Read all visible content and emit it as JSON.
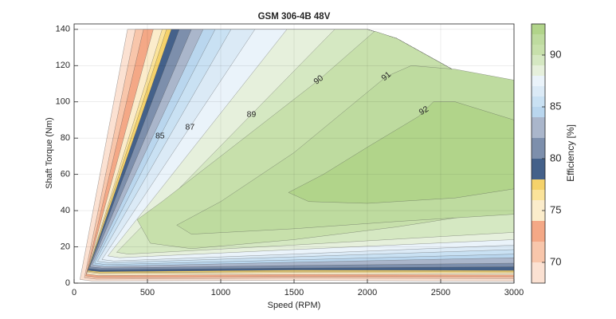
{
  "chart_data": {
    "type": "contour",
    "title": "GSM 306-4B 48V",
    "x_label": "Speed (RPM)",
    "y_label": "Shaft Torque (Nm)",
    "xlim": [
      0,
      3000
    ],
    "ylim": [
      0,
      143
    ],
    "xticks": [
      0,
      500,
      1000,
      1500,
      2000,
      2500,
      3000
    ],
    "yticks": [
      0,
      20,
      40,
      60,
      80,
      100,
      120,
      140
    ],
    "grid": true,
    "colorbar": {
      "label": "Efficiency [%]",
      "clim": [
        68,
        93
      ],
      "ticks": [
        70,
        75,
        80,
        85,
        90
      ]
    },
    "series": [
      {
        "level": 68,
        "color": "#fbe1d2",
        "x": [
          40,
          364,
          2000,
          2200,
          2400,
          2600,
          2800,
          3000,
          3000,
          1500,
          120
        ],
        "y": [
          2,
          140,
          140,
          135,
          126,
          117,
          108,
          100,
          1,
          1.5,
          1.2
        ]
      },
      {
        "level": 70,
        "color": "#f8c6ab",
        "x": [
          70,
          418,
          2000,
          2200,
          2400,
          2600,
          2800,
          3000,
          3000,
          1500,
          150
        ],
        "y": [
          3,
          140,
          140,
          135,
          126,
          117,
          108,
          100,
          2.5,
          2.8,
          2.2
        ]
      },
      {
        "level": 72,
        "color": "#f4a886",
        "x": [
          80,
          473,
          2000,
          2200,
          2400,
          2600,
          2800,
          3000,
          3000,
          1500,
          160
        ],
        "y": [
          4,
          140,
          140,
          135,
          126,
          117,
          108,
          100,
          3.5,
          3.7,
          3.2
        ]
      },
      {
        "level": 74,
        "color": "#fbeccb",
        "x": [
          85,
          540,
          2000,
          2200,
          2400,
          2600,
          2800,
          3000,
          3000,
          1500,
          165
        ],
        "y": [
          5,
          140,
          140,
          135,
          126,
          117,
          108,
          100,
          4.5,
          4.8,
          4.2
        ]
      },
      {
        "level": 76,
        "color": "#fbe39a",
        "x": [
          90,
          600,
          2000,
          2200,
          2400,
          2600,
          2800,
          3000,
          3000,
          1500,
          170
        ],
        "y": [
          6,
          140,
          140,
          135,
          126,
          117,
          108,
          100,
          5.5,
          5.8,
          5.2
        ]
      },
      {
        "level": 77,
        "color": "#f5d26a",
        "x": [
          92,
          630,
          2000,
          2200,
          2400,
          2600,
          2800,
          3000,
          3000,
          1500,
          172
        ],
        "y": [
          6.5,
          140,
          140,
          135,
          126,
          117,
          108,
          100,
          6.2,
          6.4,
          5.7
        ]
      },
      {
        "level": 78,
        "color": "#44618a",
        "x": [
          95,
          663,
          2000,
          2200,
          2400,
          2600,
          2800,
          3000,
          3000,
          1500,
          175
        ],
        "y": [
          7,
          140,
          140,
          135,
          126,
          117,
          108,
          100,
          7,
          7.2,
          6.3
        ]
      },
      {
        "level": 80,
        "color": "#7d8fac",
        "x": [
          100,
          717,
          2000,
          2200,
          2400,
          2600,
          2800,
          3000,
          3000,
          1500,
          180
        ],
        "y": [
          8,
          140,
          140,
          135,
          126,
          117,
          108,
          100,
          9,
          8.3,
          7.3
        ]
      },
      {
        "level": 82,
        "color": "#aab6cb",
        "x": [
          110,
          800,
          2000,
          2200,
          2400,
          2600,
          2800,
          3000,
          3000,
          1500,
          190
        ],
        "y": [
          9,
          140,
          140,
          135,
          126,
          117,
          108,
          100,
          11,
          9.7,
          8.3
        ]
      },
      {
        "level": 84,
        "color": "#b9d6ee",
        "x": [
          125,
          880,
          2000,
          2200,
          2400,
          2600,
          2800,
          3000,
          3000,
          1500,
          205
        ],
        "y": [
          10,
          140,
          140,
          135,
          126,
          117,
          108,
          100,
          14,
          11.5,
          9.2
        ]
      },
      {
        "level": 85,
        "color": "#c9e1f3",
        "x": [
          140,
          962,
          2000,
          2200,
          2400,
          2600,
          2800,
          3000,
          3000,
          1500,
          220
        ],
        "y": [
          11,
          140,
          140,
          135,
          126,
          117,
          108,
          100,
          16,
          12.8,
          10.2
        ]
      },
      {
        "level": 86,
        "color": "#dbeaf6",
        "x": [
          160,
          1070,
          2000,
          2200,
          2400,
          2600,
          2800,
          3000,
          3000,
          1500,
          240
        ],
        "y": [
          12,
          140,
          140,
          135,
          126,
          117,
          108,
          100,
          18.5,
          14.5,
          11.2
        ]
      },
      {
        "level": 87,
        "color": "#eaf3fa",
        "x": [
          190,
          1233,
          2000,
          2200,
          2400,
          2600,
          2800,
          3000,
          3000,
          1500,
          270
        ],
        "y": [
          13,
          140,
          140,
          135,
          126,
          117,
          108,
          100,
          21,
          16,
          12.2
        ]
      },
      {
        "level": 88,
        "color": "#e6f0dc",
        "x": [
          230,
          1451,
          2000,
          2200,
          2400,
          2600,
          2800,
          3000,
          3000,
          1500,
          310
        ],
        "y": [
          15,
          140,
          140,
          135,
          126,
          117,
          108,
          100,
          24,
          18.5,
          14
        ]
      },
      {
        "level": 89,
        "color": "#d5e8c2",
        "x": [
          290,
          1777,
          2000,
          2200,
          2400,
          2600,
          2800,
          3000,
          3000,
          1500,
          370
        ],
        "y": [
          17,
          140,
          140,
          135,
          126,
          117,
          108,
          100,
          28,
          21,
          16
        ]
      },
      {
        "level": 90,
        "color": "#c7e0ab",
        "x": [
          430,
          520,
          800,
          1500,
          2200,
          3000,
          3000,
          2800,
          2600,
          2400,
          2200,
          2050,
          1668,
          1000,
          600
        ],
        "y": [
          35,
          22,
          19,
          24,
          31,
          41,
          100,
          108,
          117,
          126,
          135,
          139,
          112,
          70,
          45
        ]
      },
      {
        "level": 91,
        "color": "#bedb9f",
        "x": [
          700,
          800,
          1500,
          2200,
          3000,
          3000,
          2600,
          2300,
          2130,
          1500,
          1000
        ],
        "y": [
          32,
          27,
          30,
          34,
          38,
          112,
          118,
          120,
          114,
          72,
          45
        ]
      },
      {
        "level": 92,
        "color": "#b1d48a",
        "x": [
          1462,
          1600,
          2000,
          2600,
          3000,
          3000,
          2600,
          2450,
          2350,
          2000,
          1700
        ],
        "y": [
          50,
          45,
          44,
          47,
          52,
          90,
          100,
          100,
          92,
          75,
          60
        ]
      }
    ],
    "contour_labels": [
      {
        "value": 85,
        "x": 586,
        "y": 81
      },
      {
        "value": 87,
        "x": 790,
        "y": 86
      },
      {
        "value": 89,
        "x": 1209,
        "y": 93
      },
      {
        "value": 90,
        "x": 1668,
        "y": 112
      },
      {
        "value": 91,
        "x": 2130,
        "y": 114
      },
      {
        "value": 92,
        "x": 2386,
        "y": 95
      }
    ]
  }
}
